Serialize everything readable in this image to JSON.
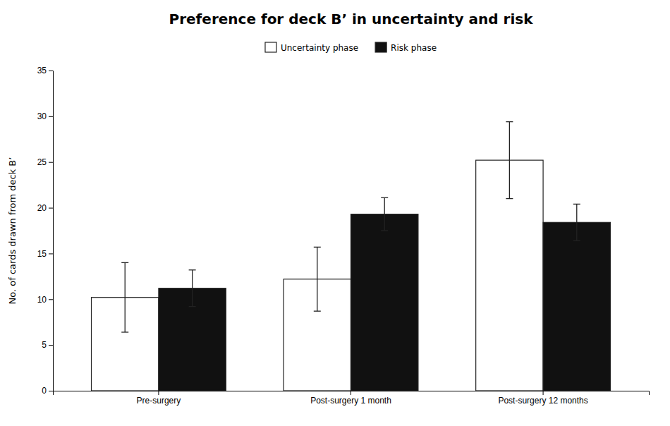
{
  "chart_data": {
    "type": "bar",
    "title": "Preference for deck B’ in uncertainty  and risk",
    "ylabel": "No. of cards drawn from deck B’",
    "categories": [
      "Pre-surgery",
      "Post-surgery 1 month",
      "Post-surgery 12 months"
    ],
    "series": [
      {
        "name": "Uncertainty phase",
        "color": "#ffffff",
        "values": [
          10.2,
          12.2,
          25.2
        ],
        "errors": [
          3.8,
          3.5,
          4.2
        ]
      },
      {
        "name": "Risk phase",
        "color": "#111111",
        "values": [
          11.2,
          19.3,
          18.4
        ],
        "errors": [
          2.0,
          1.8,
          2.0
        ]
      }
    ],
    "ylim": [
      0,
      35
    ],
    "yticks": [
      0,
      5,
      10,
      15,
      20,
      25,
      30,
      35
    ],
    "grid": false,
    "legend": "top"
  }
}
